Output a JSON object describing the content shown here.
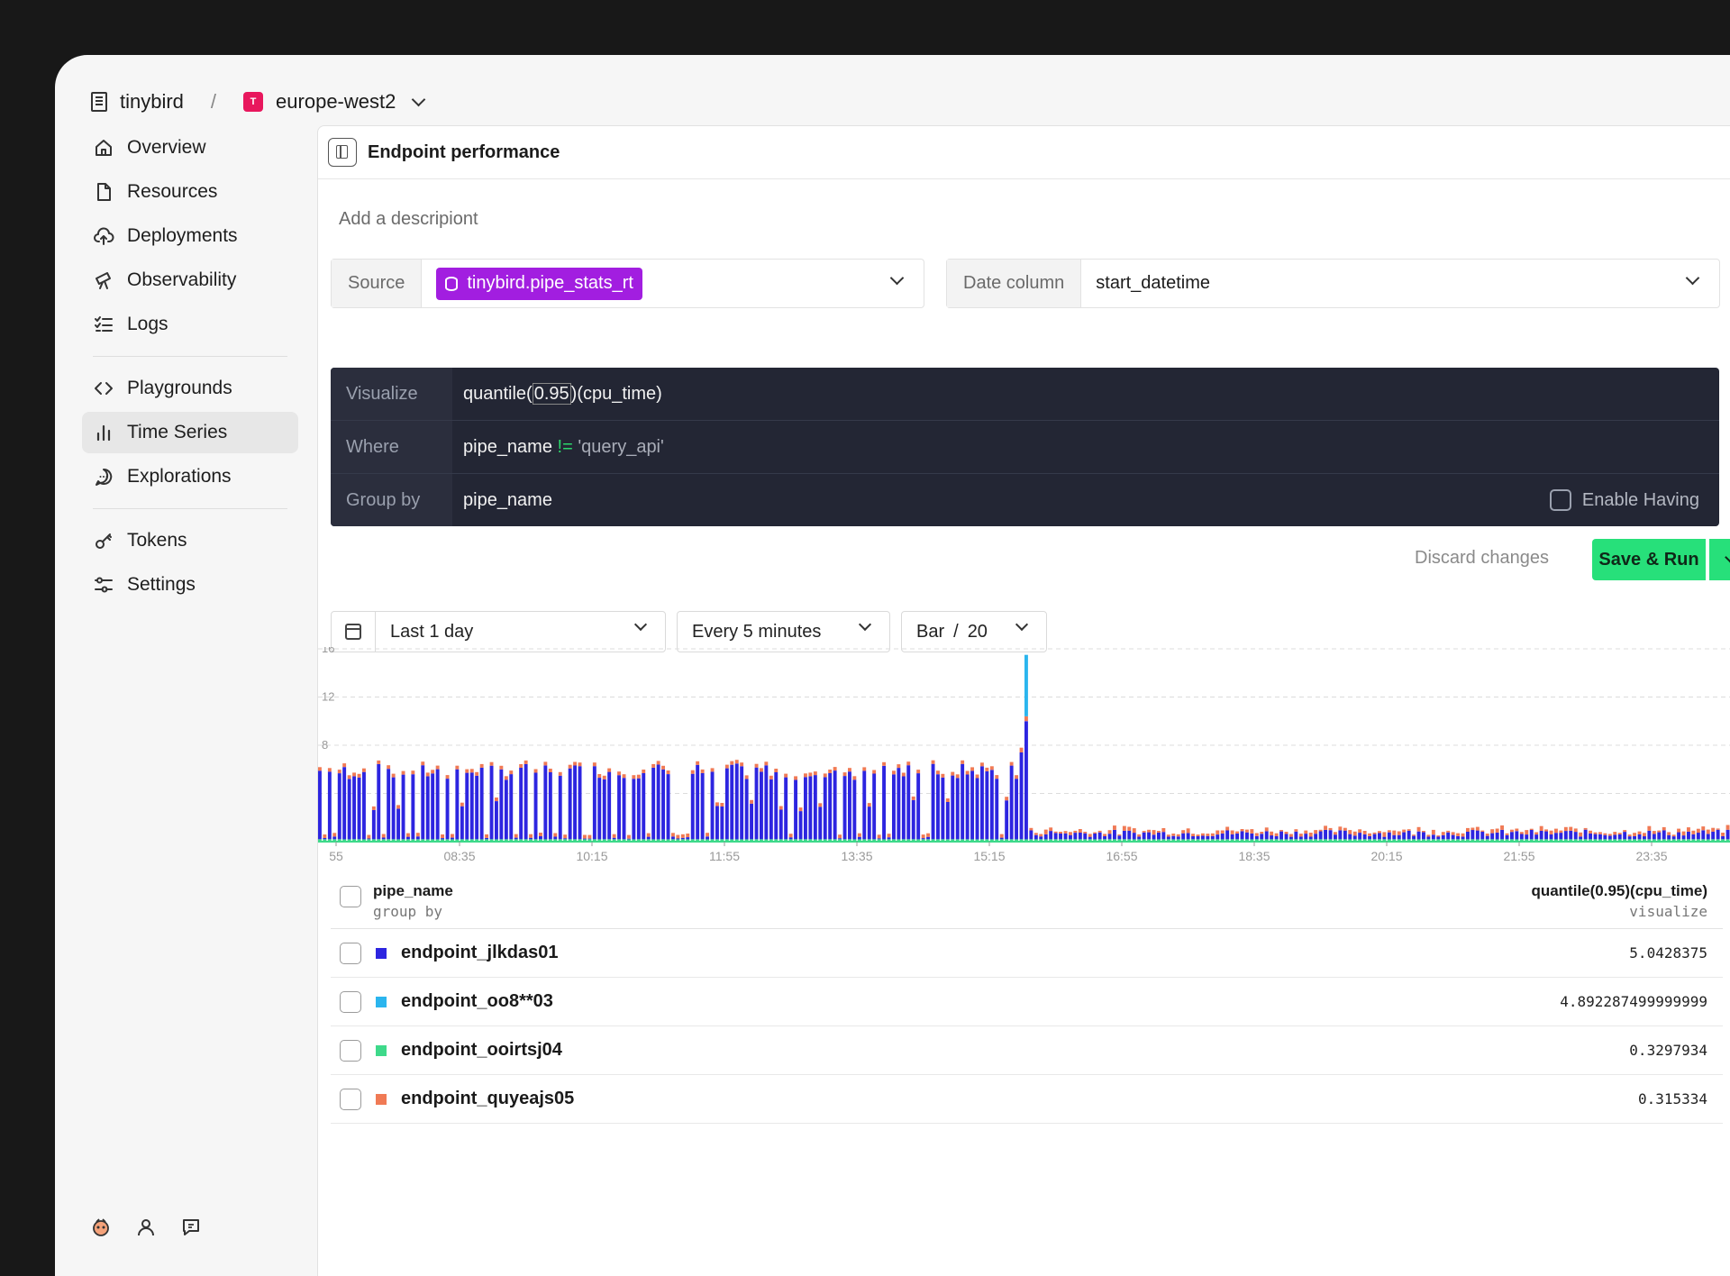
{
  "topbar": {
    "org": "tinybird",
    "separator": "/",
    "workspace_badge": "T",
    "workspace": "europe-west2",
    "badge_color": "#e8175d"
  },
  "sidebar": {
    "group1": [
      {
        "label": "Overview",
        "icon": "home-icon"
      },
      {
        "label": "Resources",
        "icon": "file-icon"
      },
      {
        "label": "Deployments",
        "icon": "cloud-upload-icon"
      },
      {
        "label": "Observability",
        "icon": "telescope-icon"
      },
      {
        "label": "Logs",
        "icon": "list-check-icon"
      }
    ],
    "group2": [
      {
        "label": "Playgrounds",
        "icon": "code-icon"
      },
      {
        "label": "Time Series",
        "icon": "bar-chart-icon",
        "active": true
      },
      {
        "label": "Explorations",
        "icon": "chat-bubble-icon"
      }
    ],
    "group3": [
      {
        "label": "Tokens",
        "icon": "key-icon"
      },
      {
        "label": "Settings",
        "icon": "sliders-icon"
      }
    ]
  },
  "panel": {
    "title": "Endpoint performance",
    "description_placeholder": "Add a descripiont",
    "source": {
      "label": "Source",
      "value": "tinybird.pipe_stats_rt",
      "pill_color": "#a21ee0"
    },
    "date_column": {
      "label": "Date column",
      "value": "start_datetime"
    },
    "query": {
      "visualize_label": "Visualize",
      "visualize_a": "quantile(",
      "visualize_b": "0.95",
      "visualize_c": ")(cpu_time)",
      "where_label": "Where",
      "where_field": "pipe_name",
      "where_op": "!=",
      "where_value": "'query_api'",
      "groupby_label": "Group by",
      "groupby_value": "pipe_name",
      "having_label": "Enable Having"
    },
    "actions": {
      "discard": "Discard changes",
      "save": "Save & Run",
      "accent": "#27e07a"
    },
    "controls": {
      "range": "Last 1 day",
      "interval": "Every 5 minutes",
      "chart_type": "Bar",
      "chart_sep": "/",
      "chart_limit": "20"
    }
  },
  "chart_data": {
    "type": "bar",
    "stacked": true,
    "y_ticks": [
      "16",
      "12",
      "8"
    ],
    "ylim": [
      0,
      16
    ],
    "x_ticks": [
      "55",
      "08:35",
      "10:15",
      "11:55",
      "13:35",
      "15:15",
      "16:55",
      "18:35",
      "20:15",
      "21:55",
      "23:35"
    ],
    "grid": true,
    "series": [
      {
        "name": "endpoint_jlkdas01",
        "color": "#2d25e0"
      },
      {
        "name": "endpoint_oo8**03",
        "color": "#2bb5ee"
      },
      {
        "name": "endpoint_ooirtsj04",
        "color": "#3ed98a"
      },
      {
        "name": "endpoint_quyeajs05",
        "color": "#f07a55"
      }
    ],
    "notes_values_estimated": [
      {
        "segment": "00:00-16:00",
        "endpoint_jlkdas01": 5.5,
        "endpoint_quyeajs05": 0.3,
        "endpoint_ooirtsj04": 0.2
      },
      {
        "segment": "15:55",
        "endpoint_jlkdas01": 9.8,
        "endpoint_quyeajs05": 0.4,
        "endpoint_oo8**03": 5.1
      },
      {
        "segment": "16:00-24:00",
        "endpoint_jlkdas01": 0.6,
        "endpoint_quyeajs05": 0.3,
        "endpoint_ooirtsj04": 0.2
      }
    ]
  },
  "table": {
    "col1_title": "pipe_name",
    "col1_sub": "group by",
    "col2_title": "quantile(0.95)(cpu_time)",
    "col2_sub": "visualize",
    "rows": [
      {
        "name": "endpoint_jlkdas01",
        "value": "5.0428375",
        "color": "#2d25e0"
      },
      {
        "name": "endpoint_oo8**03",
        "value": "4.892287499999999",
        "color": "#2bb5ee"
      },
      {
        "name": "endpoint_ooirtsj04",
        "value": "0.3297934",
        "color": "#3ed98a"
      },
      {
        "name": "endpoint_quyeajs05",
        "value": "0.315334",
        "color": "#f07a55"
      }
    ]
  }
}
